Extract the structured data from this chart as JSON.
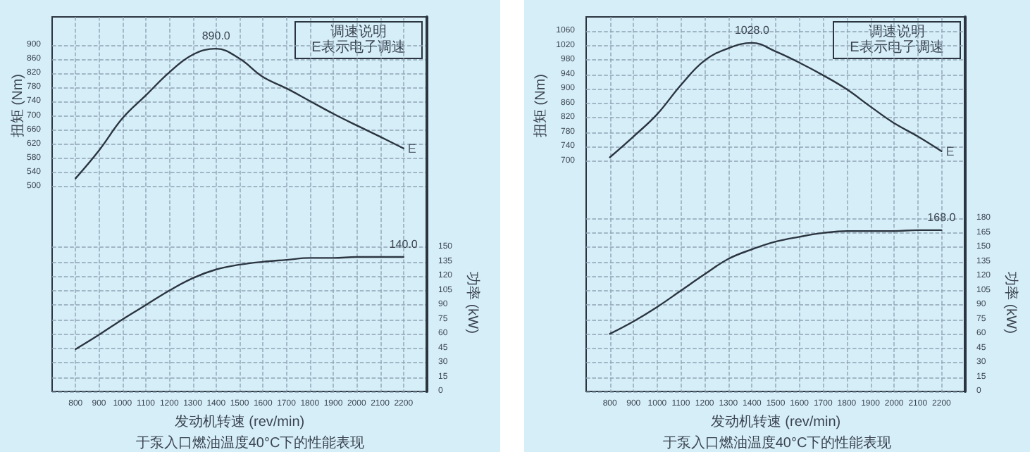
{
  "chart_data": [
    {
      "type": "line",
      "xlabel": "发动机转速 (rev/min)",
      "ylabel": "扭矩 (Nm)",
      "y2label": "功率 (kW)",
      "x": [
        800,
        900,
        1000,
        1100,
        1200,
        1300,
        1400,
        1500,
        1600,
        1700,
        1800,
        1900,
        2000,
        2100,
        2200
      ],
      "series": [
        {
          "color": "#2b3540",
          "values": [
            523,
            602,
            693,
            758,
            823,
            873,
            890,
            862,
            810,
            778,
            742,
            706,
            673,
            641,
            608
          ],
          "value_labels": [
            null,
            null,
            null,
            null,
            null,
            null,
            "890.0",
            null,
            null,
            null,
            null,
            null,
            null,
            null,
            null
          ]
        },
        {
          "color": "#2b3540",
          "axis": "y2",
          "values": [
            44,
            59,
            75,
            90,
            105,
            118,
            127,
            132,
            135,
            137,
            139,
            139,
            140,
            140,
            140
          ],
          "value_labels": [
            null,
            null,
            null,
            null,
            null,
            null,
            null,
            null,
            null,
            null,
            null,
            null,
            null,
            null,
            "140.0"
          ]
        }
      ],
      "xlim": [
        700,
        2300
      ],
      "xticks": [
        800,
        900,
        1000,
        1100,
        1200,
        1300,
        1400,
        1500,
        1600,
        1700,
        1800,
        1900,
        2000,
        2100,
        2200
      ],
      "ylim": [
        -80,
        980
      ],
      "yticks": [
        500,
        540,
        580,
        620,
        660,
        700,
        740,
        780,
        820,
        860,
        900
      ],
      "y2lim": [
        0,
        390
      ],
      "y2ticks": [
        0,
        15,
        30,
        45,
        60,
        75,
        90,
        105,
        120,
        135,
        150
      ],
      "grid": true,
      "marker": "none",
      "line_style": "solid",
      "annotations": [
        {
          "text": "E",
          "x": 2200,
          "y": 608
        },
        "调速说明\nE表示电子调速",
        "于泵入口燃油温度40°C下的性能表现"
      ]
    },
    {
      "type": "line",
      "xlabel": "发动机转速 (rev/min)",
      "ylabel": "扭矩 (Nm)",
      "y2label": "功率 (kW)",
      "x": [
        800,
        900,
        1000,
        1100,
        1200,
        1300,
        1400,
        1500,
        1600,
        1700,
        1800,
        1900,
        2000,
        2100,
        2200
      ],
      "series": [
        {
          "color": "#2b3540",
          "values": [
            710,
            768,
            830,
            911,
            979,
            1013,
            1028,
            1004,
            973,
            938,
            899,
            851,
            805,
            768,
            727
          ],
          "value_labels": [
            null,
            null,
            null,
            null,
            null,
            null,
            "1028.0",
            null,
            null,
            null,
            null,
            null,
            null,
            null,
            null
          ]
        },
        {
          "color": "#2b3540",
          "axis": "y2",
          "values": [
            60,
            73,
            88,
            105,
            122,
            138,
            148,
            156,
            161,
            165,
            167,
            167,
            167,
            168,
            168
          ],
          "value_labels": [
            null,
            null,
            null,
            null,
            null,
            null,
            null,
            null,
            null,
            null,
            null,
            null,
            null,
            null,
            "168.0"
          ]
        }
      ],
      "xlim": [
        700,
        2300
      ],
      "xticks": [
        800,
        900,
        1000,
        1100,
        1200,
        1300,
        1400,
        1500,
        1600,
        1700,
        1800,
        1900,
        2000,
        2100,
        2200
      ],
      "ylim": [
        60,
        1100
      ],
      "yticks": [
        700,
        740,
        780,
        820,
        860,
        900,
        940,
        980,
        1020,
        1060
      ],
      "y2lim": [
        0,
        390
      ],
      "y2ticks": [
        0,
        15,
        30,
        45,
        60,
        75,
        90,
        105,
        120,
        135,
        150,
        165,
        180
      ],
      "grid": true,
      "marker": "none",
      "line_style": "solid",
      "annotations": [
        {
          "text": "E",
          "x": 2200,
          "y": 727
        },
        "调速说明\nE表示电子调速",
        "于泵入口燃油温度40°C下的性能表现"
      ]
    }
  ]
}
